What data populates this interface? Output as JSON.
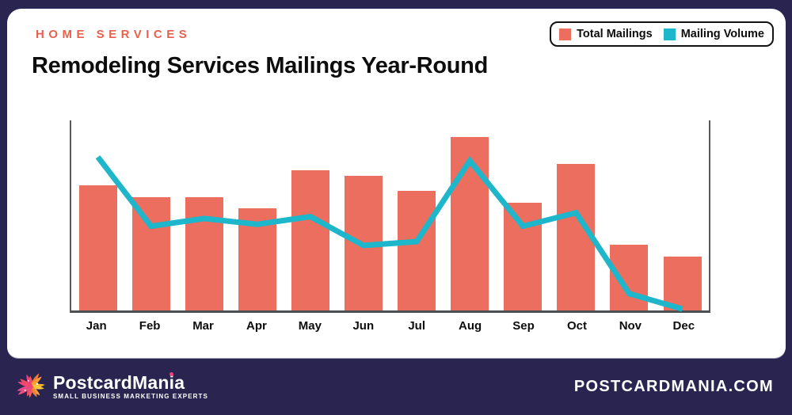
{
  "header": {
    "category": "HOME SERVICES",
    "title": "Remodeling Services Mailings Year-Round"
  },
  "legend": {
    "items": [
      {
        "label": "Total Mailings",
        "color": "#EB6E5F"
      },
      {
        "label": "Mailing Volume",
        "color": "#1EB6CA"
      }
    ]
  },
  "chart_data": {
    "type": "bar",
    "title": "Remodeling Services Mailings Year-Round",
    "categories": [
      "Jan",
      "Feb",
      "Mar",
      "Apr",
      "May",
      "Jun",
      "Jul",
      "Aug",
      "Sep",
      "Oct",
      "Nov",
      "Dec"
    ],
    "series": [
      {
        "name": "Total Mailings",
        "type": "bar",
        "color": "#EB6E5F",
        "values": [
          65,
          59,
          59,
          53,
          73,
          70,
          62,
          90,
          56,
          76,
          34,
          28
        ]
      },
      {
        "name": "Mailing Volume",
        "type": "line",
        "color": "#1EB6CA",
        "values": [
          81,
          45,
          49,
          46,
          50,
          35,
          37,
          79,
          45,
          52,
          10,
          2
        ]
      }
    ],
    "xlabel": "",
    "ylabel": "",
    "ylim": [
      0,
      100
    ],
    "grid": false,
    "y_axis_labels": false,
    "legend_position": "top-right"
  },
  "footer": {
    "brand": "PostcardMania",
    "tagline": "SMALL BUSINESS MARKETING EXPERTS",
    "website": "POSTCARDMANIA.COM",
    "logo": "starburst-flower-logo"
  },
  "colors": {
    "background": "#2A2550",
    "card": "#FFFFFF",
    "accent_text": "#E8614E",
    "bar": "#EB6E5F",
    "line": "#1EB6CA",
    "axis": "#58595B"
  }
}
